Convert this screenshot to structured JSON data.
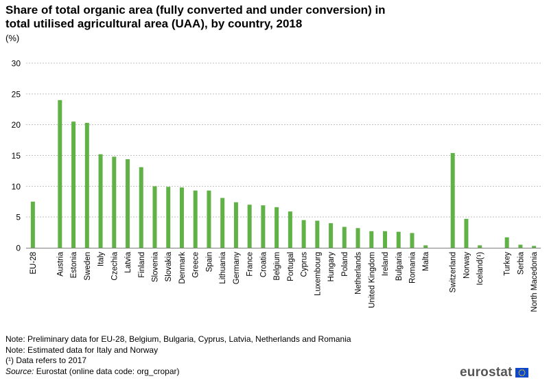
{
  "title_line1": "Share of total organic area (fully converted and under conversion) in",
  "title_line2": "total utilised agricultural area (UAA), by country, 2018",
  "unit": "(%)",
  "notes": [
    "Note: Preliminary data for EU-28, Belgium, Bulgaria, Cyprus, Latvia, Netherlands and Romania",
    "Note: Estimated data for Italy  and Norway",
    "(¹) Data refers to 2017"
  ],
  "source_label": "Source:",
  "source_text": " Eurostat (online data code: org_cropar)",
  "logo_text": "eurostat",
  "colors": {
    "bar": "#61b246",
    "grid": "#bfbfbf",
    "axis": "#7f7f7f",
    "flag": "#0e47cb",
    "stars": "#ffdd00"
  },
  "chart_data": {
    "type": "bar",
    "title": "Share of total organic area (fully converted and under conversion) in total utilised agricultural area (UAA), by country, 2018",
    "ylabel": "(%)",
    "ylim": [
      0,
      30
    ],
    "yticks": [
      0,
      5,
      10,
      15,
      20,
      25,
      30
    ],
    "grid": true,
    "categories": [
      "EU-28",
      "",
      "Austria",
      "Estonia",
      "Sweden",
      "Italy",
      "Czechia",
      "Latvia",
      "Finland",
      "Slovenia",
      "Slovakia",
      "Denmark",
      "Greece",
      "Spain",
      "Lithuania",
      "Germany",
      "France",
      "Croatia",
      "Belgium",
      "Portugal",
      "Cyprus",
      "Luxembourg",
      "Hungary",
      "Poland",
      "Netherlands",
      "United Kingdom",
      "Ireland",
      "Bulgaria",
      "Romania",
      "Malta",
      "",
      "Switzerland",
      "Norway",
      "Iceland(¹)",
      "",
      "Turkey",
      "Serbia",
      "North Macedonia"
    ],
    "values": [
      7.5,
      null,
      24.0,
      20.5,
      20.3,
      15.2,
      14.8,
      14.4,
      13.1,
      10.0,
      9.9,
      9.8,
      9.3,
      9.3,
      8.1,
      7.4,
      7.0,
      6.9,
      6.6,
      5.9,
      4.5,
      4.4,
      4.0,
      3.4,
      3.2,
      2.7,
      2.7,
      2.6,
      2.4,
      0.4,
      null,
      15.4,
      4.7,
      0.4,
      null,
      1.7,
      0.5,
      0.3
    ]
  }
}
